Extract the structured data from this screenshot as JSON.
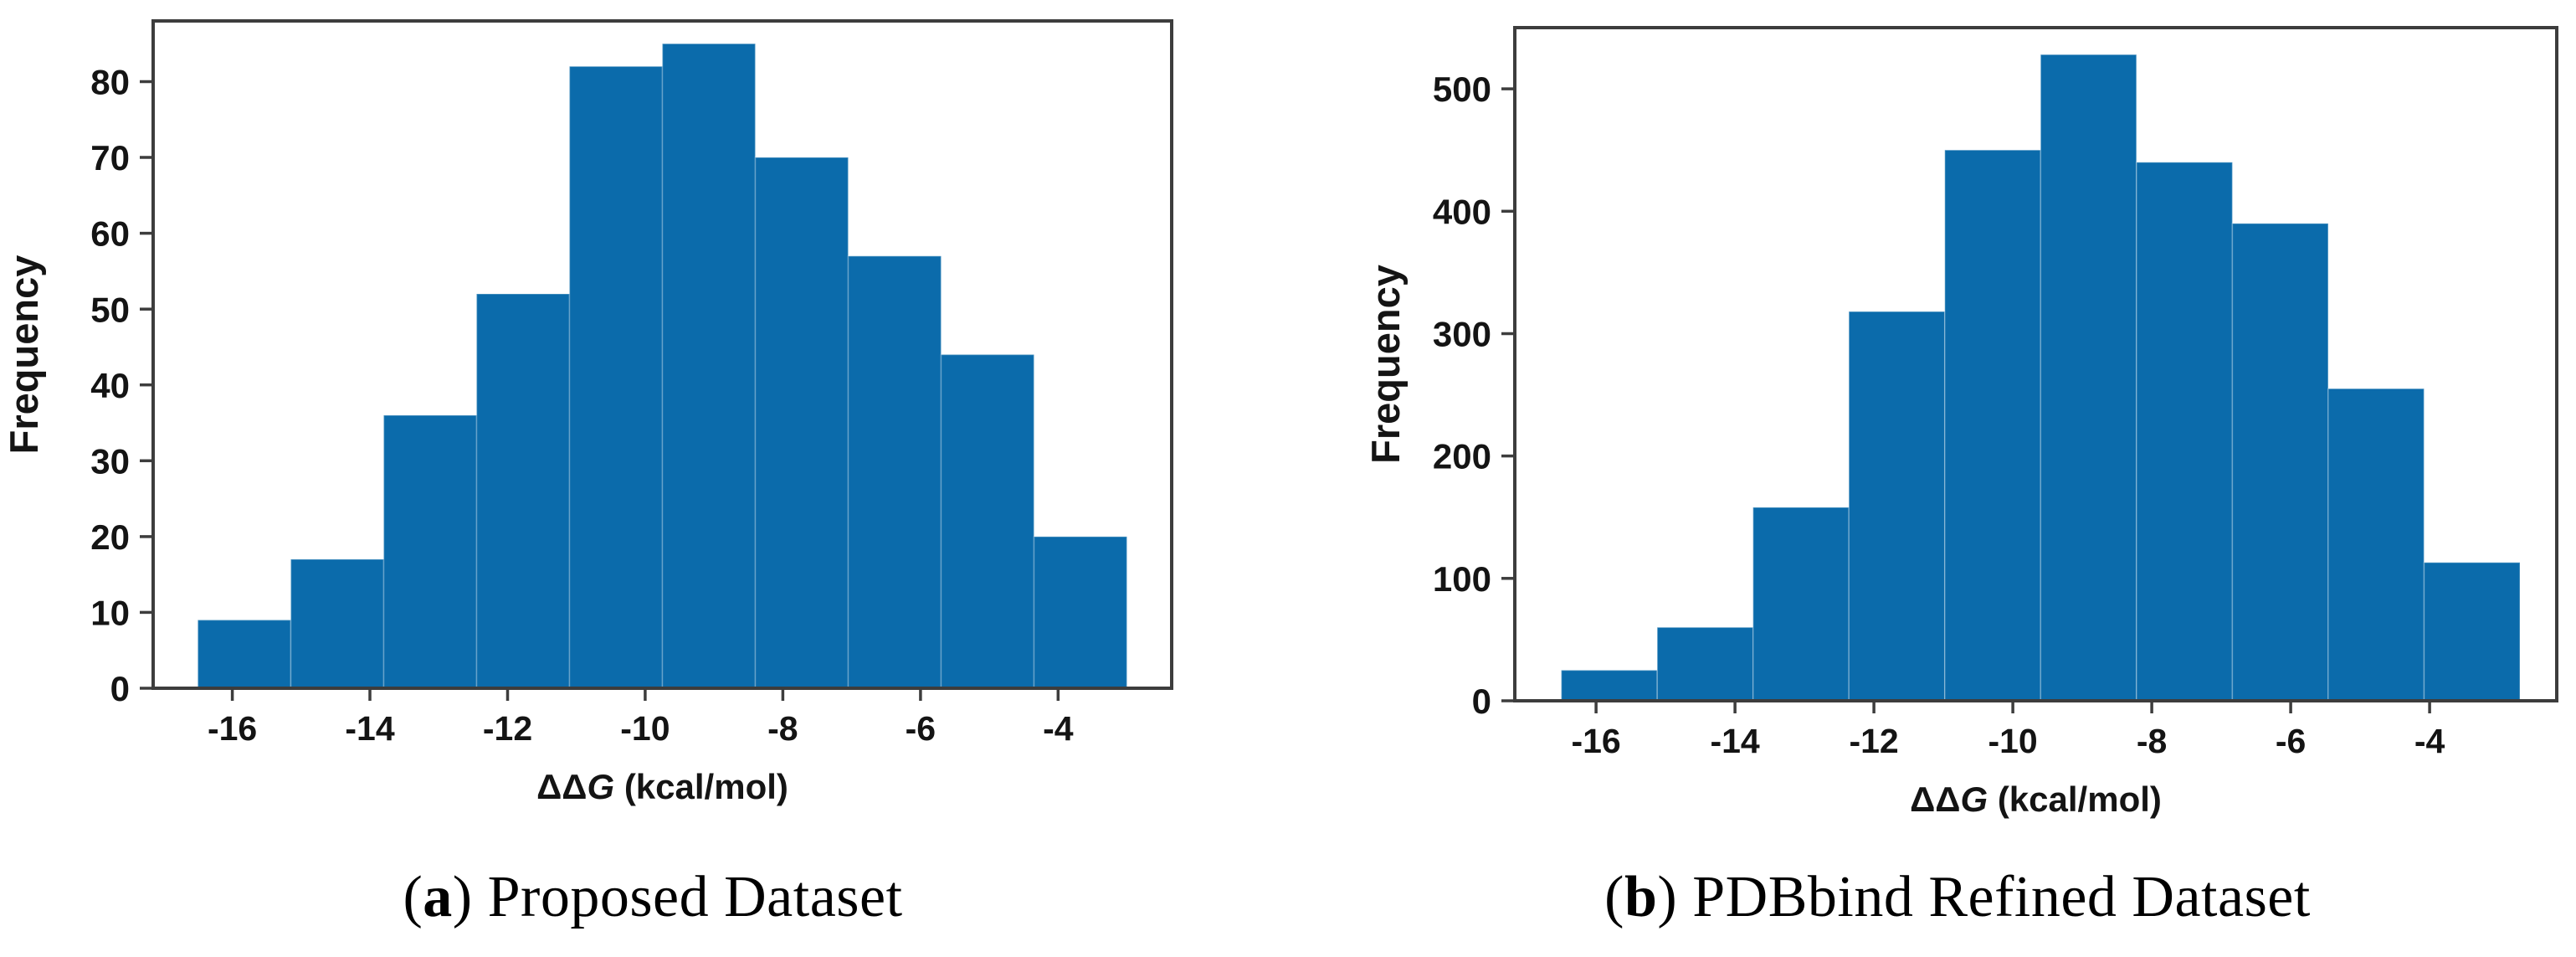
{
  "page": {
    "background": "#ffffff",
    "figure_type": "two-panel histogram figure"
  },
  "chart_data": [
    {
      "type": "bar",
      "subtype": "histogram",
      "panel": "a",
      "title": "",
      "xlabel": "ΔΔG (kcal/mol)",
      "xlabel_parts": {
        "prefix": "ΔΔ",
        "italic": "G",
        "suffix": " (kcal/mol)"
      },
      "ylabel": "Frequency",
      "bin_start": -16.5,
      "bin_width": 1.35,
      "values": [
        9,
        17,
        36,
        52,
        82,
        85,
        70,
        57,
        44,
        20
      ],
      "bin_edges": [
        -16.5,
        -15.15,
        -13.8,
        -12.45,
        -11.1,
        -9.75,
        -8.4,
        -7.05,
        -5.7,
        -4.35,
        -3.0
      ],
      "xlim": [
        -17.15,
        -2.35
      ],
      "ylim": [
        0,
        88
      ],
      "xticks": [
        -16,
        -14,
        -12,
        -10,
        -8,
        -6,
        -4
      ],
      "yticks": [
        0,
        10,
        20,
        30,
        40,
        50,
        60,
        70,
        80
      ],
      "grid": false,
      "legend": null,
      "bar_color": "#0b6bab",
      "spine_color": "#3d3d3d",
      "tick_label_color": "#141414"
    },
    {
      "type": "bar",
      "subtype": "histogram",
      "panel": "b",
      "title": "",
      "xlabel": "ΔΔG (kcal/mol)",
      "xlabel_parts": {
        "prefix": "ΔΔ",
        "italic": "G",
        "suffix": " (kcal/mol)"
      },
      "ylabel": "Frequency",
      "bin_start": -16.5,
      "bin_width": 1.38,
      "values": [
        25,
        60,
        158,
        318,
        450,
        528,
        440,
        390,
        255,
        113
      ],
      "bin_edges": [
        -16.5,
        -15.12,
        -13.74,
        -12.36,
        -10.98,
        -9.6,
        -8.22,
        -6.84,
        -5.46,
        -4.08,
        -2.7
      ],
      "xlim": [
        -17.17,
        -2.17
      ],
      "ylim": [
        0,
        550
      ],
      "xticks": [
        -16,
        -14,
        -12,
        -10,
        -8,
        -6,
        -4
      ],
      "yticks": [
        0,
        100,
        200,
        300,
        400,
        500
      ],
      "grid": false,
      "legend": null,
      "bar_color": "#0b6bab",
      "spine_color": "#3d3d3d",
      "tick_label_color": "#141414"
    }
  ],
  "captions": [
    {
      "marker_prefix": "(",
      "marker": "a",
      "marker_suffix": ") ",
      "text": "Proposed Dataset"
    },
    {
      "marker_prefix": "(",
      "marker": "b",
      "marker_suffix": ") ",
      "text": "PDBbind Refined Dataset"
    }
  ]
}
